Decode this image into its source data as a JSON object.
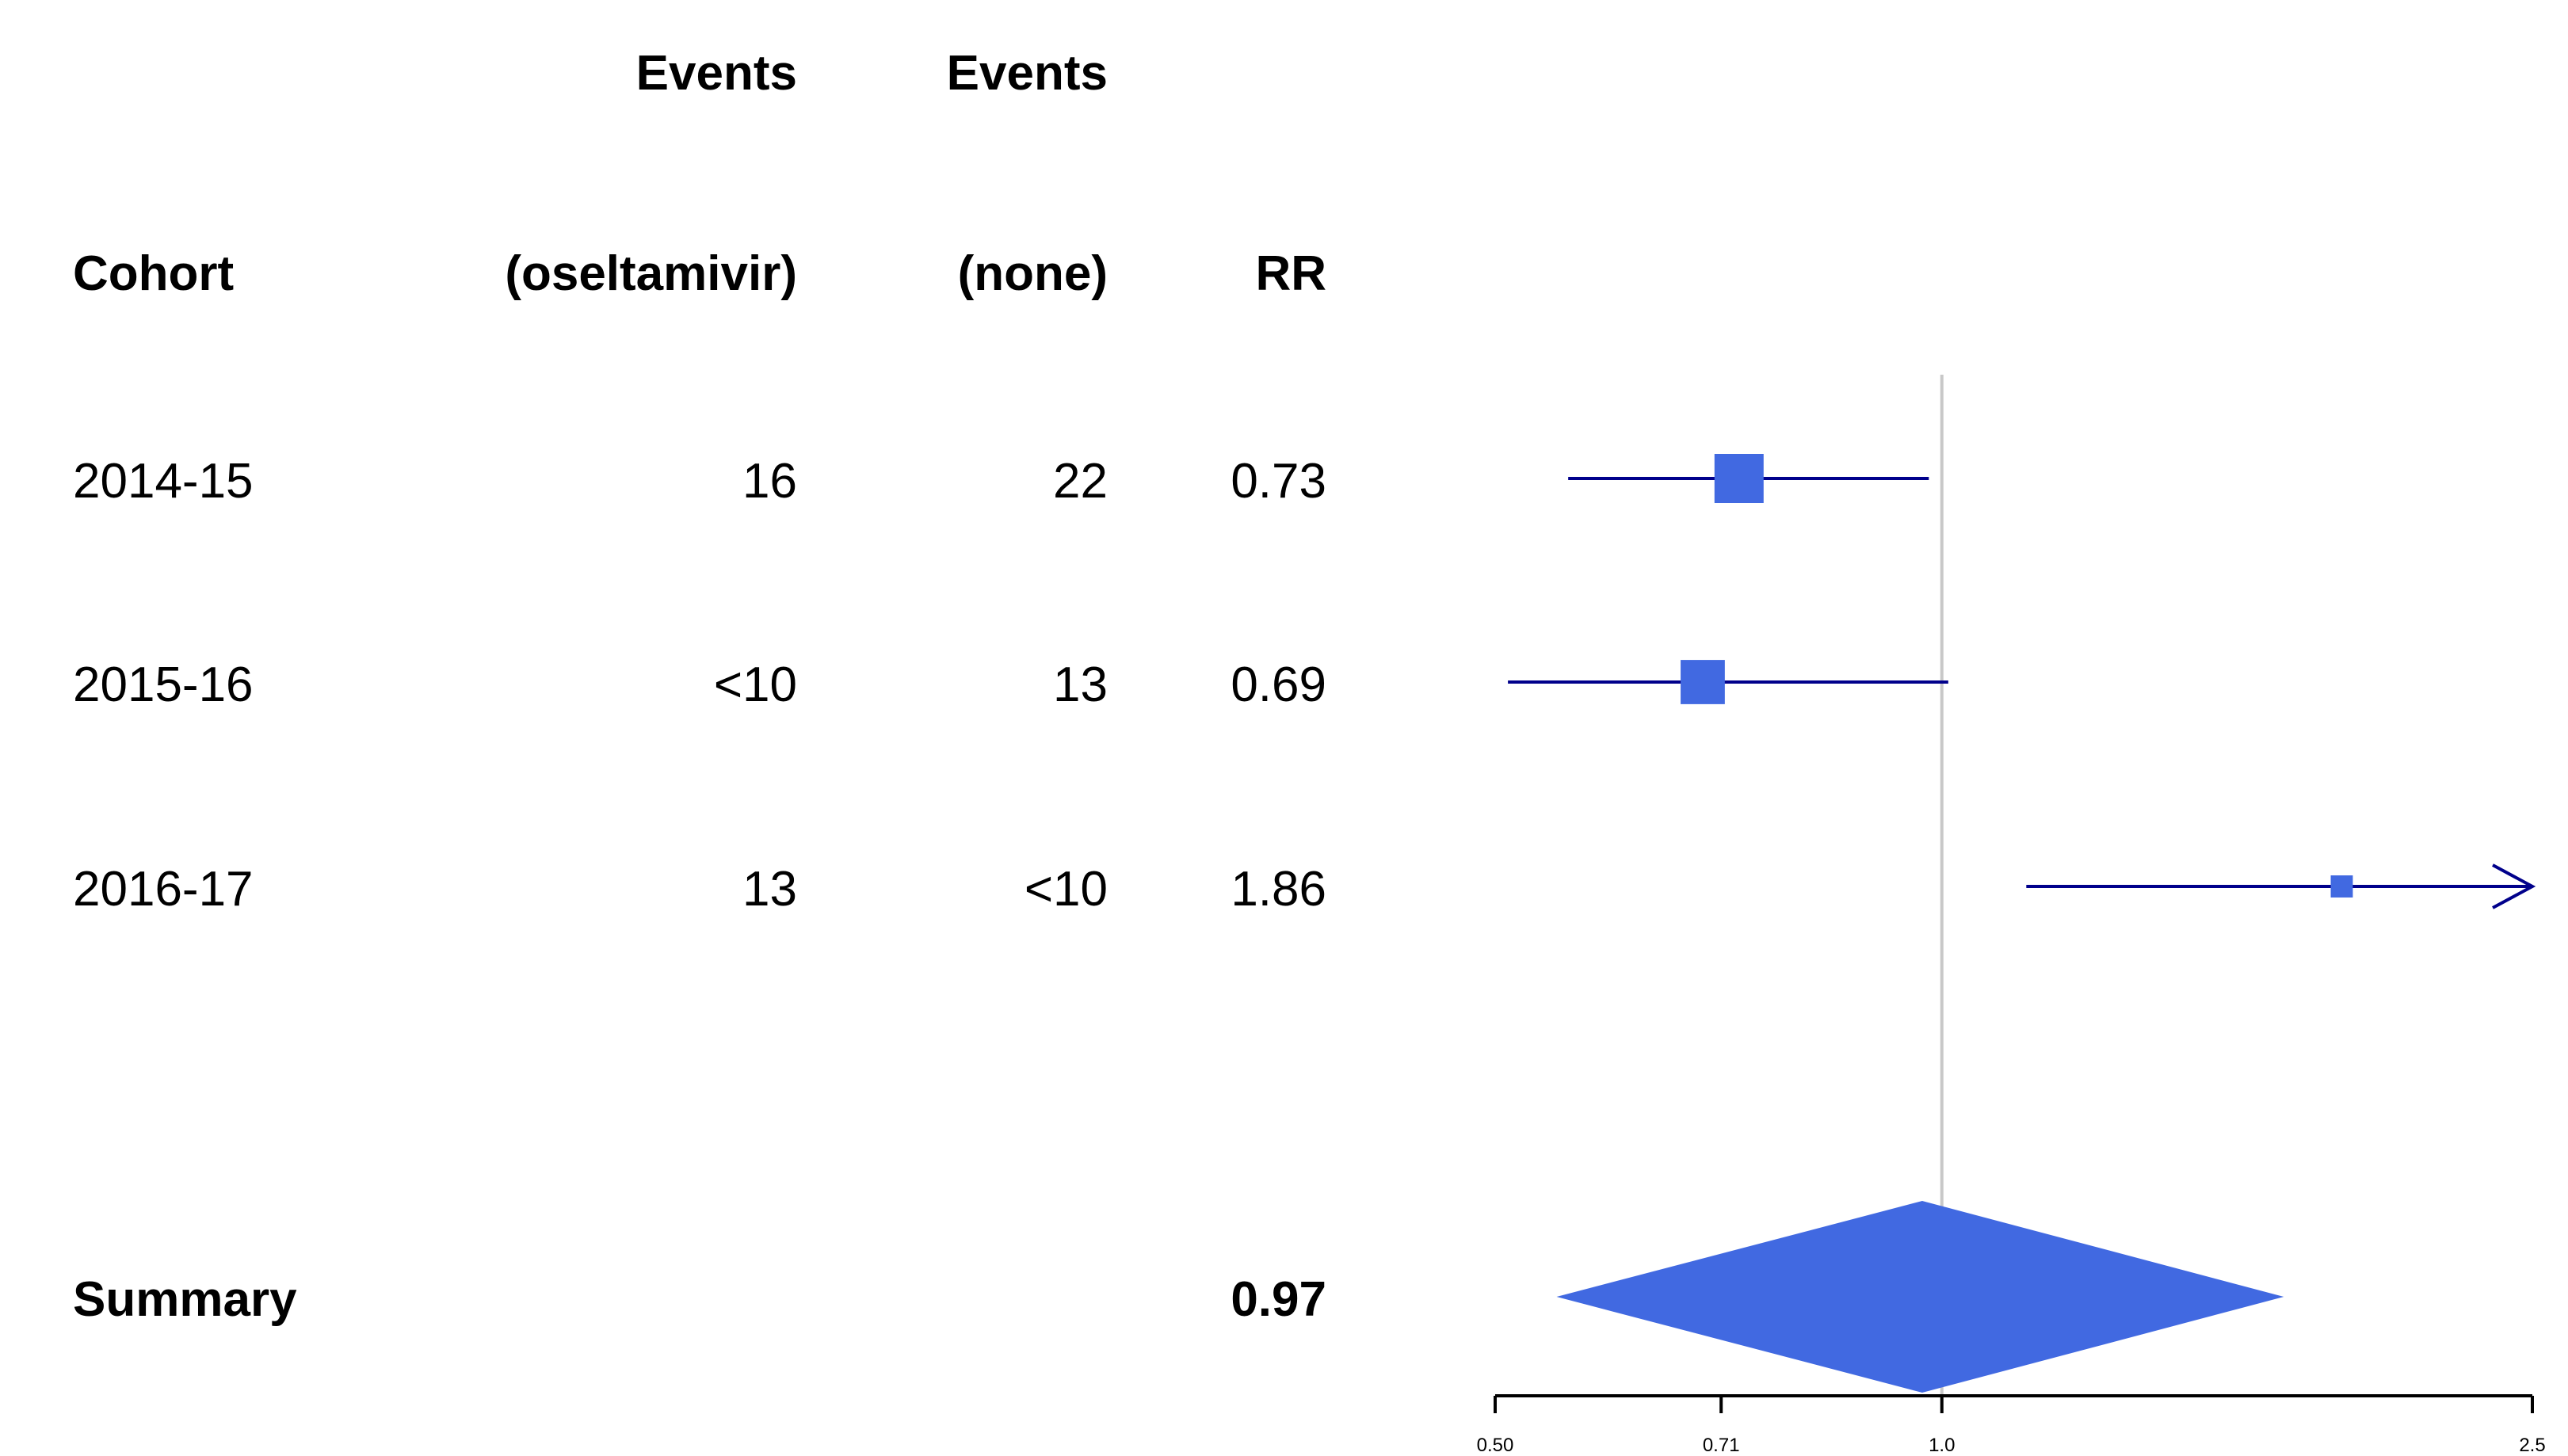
{
  "table": {
    "header_row1": {
      "events_treated": "Events",
      "events_none": "Events"
    },
    "header_row2": {
      "cohort": "Cohort",
      "events_treated": "(oseltamivir)",
      "events_none": "(none)",
      "rr": "RR"
    },
    "rows": [
      {
        "cohort": "2014-15",
        "events_treated": "16",
        "events_none": "22",
        "rr": "0.73"
      },
      {
        "cohort": "2015-16",
        "events_treated": "<10",
        "events_none": "13",
        "rr": "0.69"
      },
      {
        "cohort": "2016-17",
        "events_treated": "13",
        "events_none": "<10",
        "rr": "1.86"
      }
    ],
    "summary": {
      "label": "Summary",
      "rr": "0.97"
    }
  },
  "chart_data": {
    "type": "forest",
    "scale": "log",
    "xlim": [
      0.5,
      2.5
    ],
    "ticks": [
      {
        "value": 0.5,
        "label": "0.50"
      },
      {
        "value": 0.71,
        "label": "0.71"
      },
      {
        "value": 1.0,
        "label": "1.0"
      },
      {
        "value": 2.5,
        "label": "2.5"
      }
    ],
    "reference_line": 1.0,
    "studies": [
      {
        "label": "2014-15",
        "rr": 0.73,
        "lower": 0.56,
        "upper": 0.98,
        "weight": 1.0,
        "arrow_upper": false
      },
      {
        "label": "2015-16",
        "rr": 0.69,
        "lower": 0.51,
        "upper": 1.01,
        "weight": 0.9,
        "arrow_upper": false
      },
      {
        "label": "2016-17",
        "rr": 1.86,
        "lower": 1.14,
        "upper": 2.5,
        "weight": 0.45,
        "arrow_upper": true
      }
    ],
    "summary": {
      "rr": 0.97,
      "lower": 0.55,
      "upper": 1.7
    },
    "colors": {
      "box": "#4169E1",
      "ci_line": "#00008B",
      "diamond": "#4169E1",
      "ref_line": "#C8C8C8",
      "axis": "#000000"
    }
  }
}
